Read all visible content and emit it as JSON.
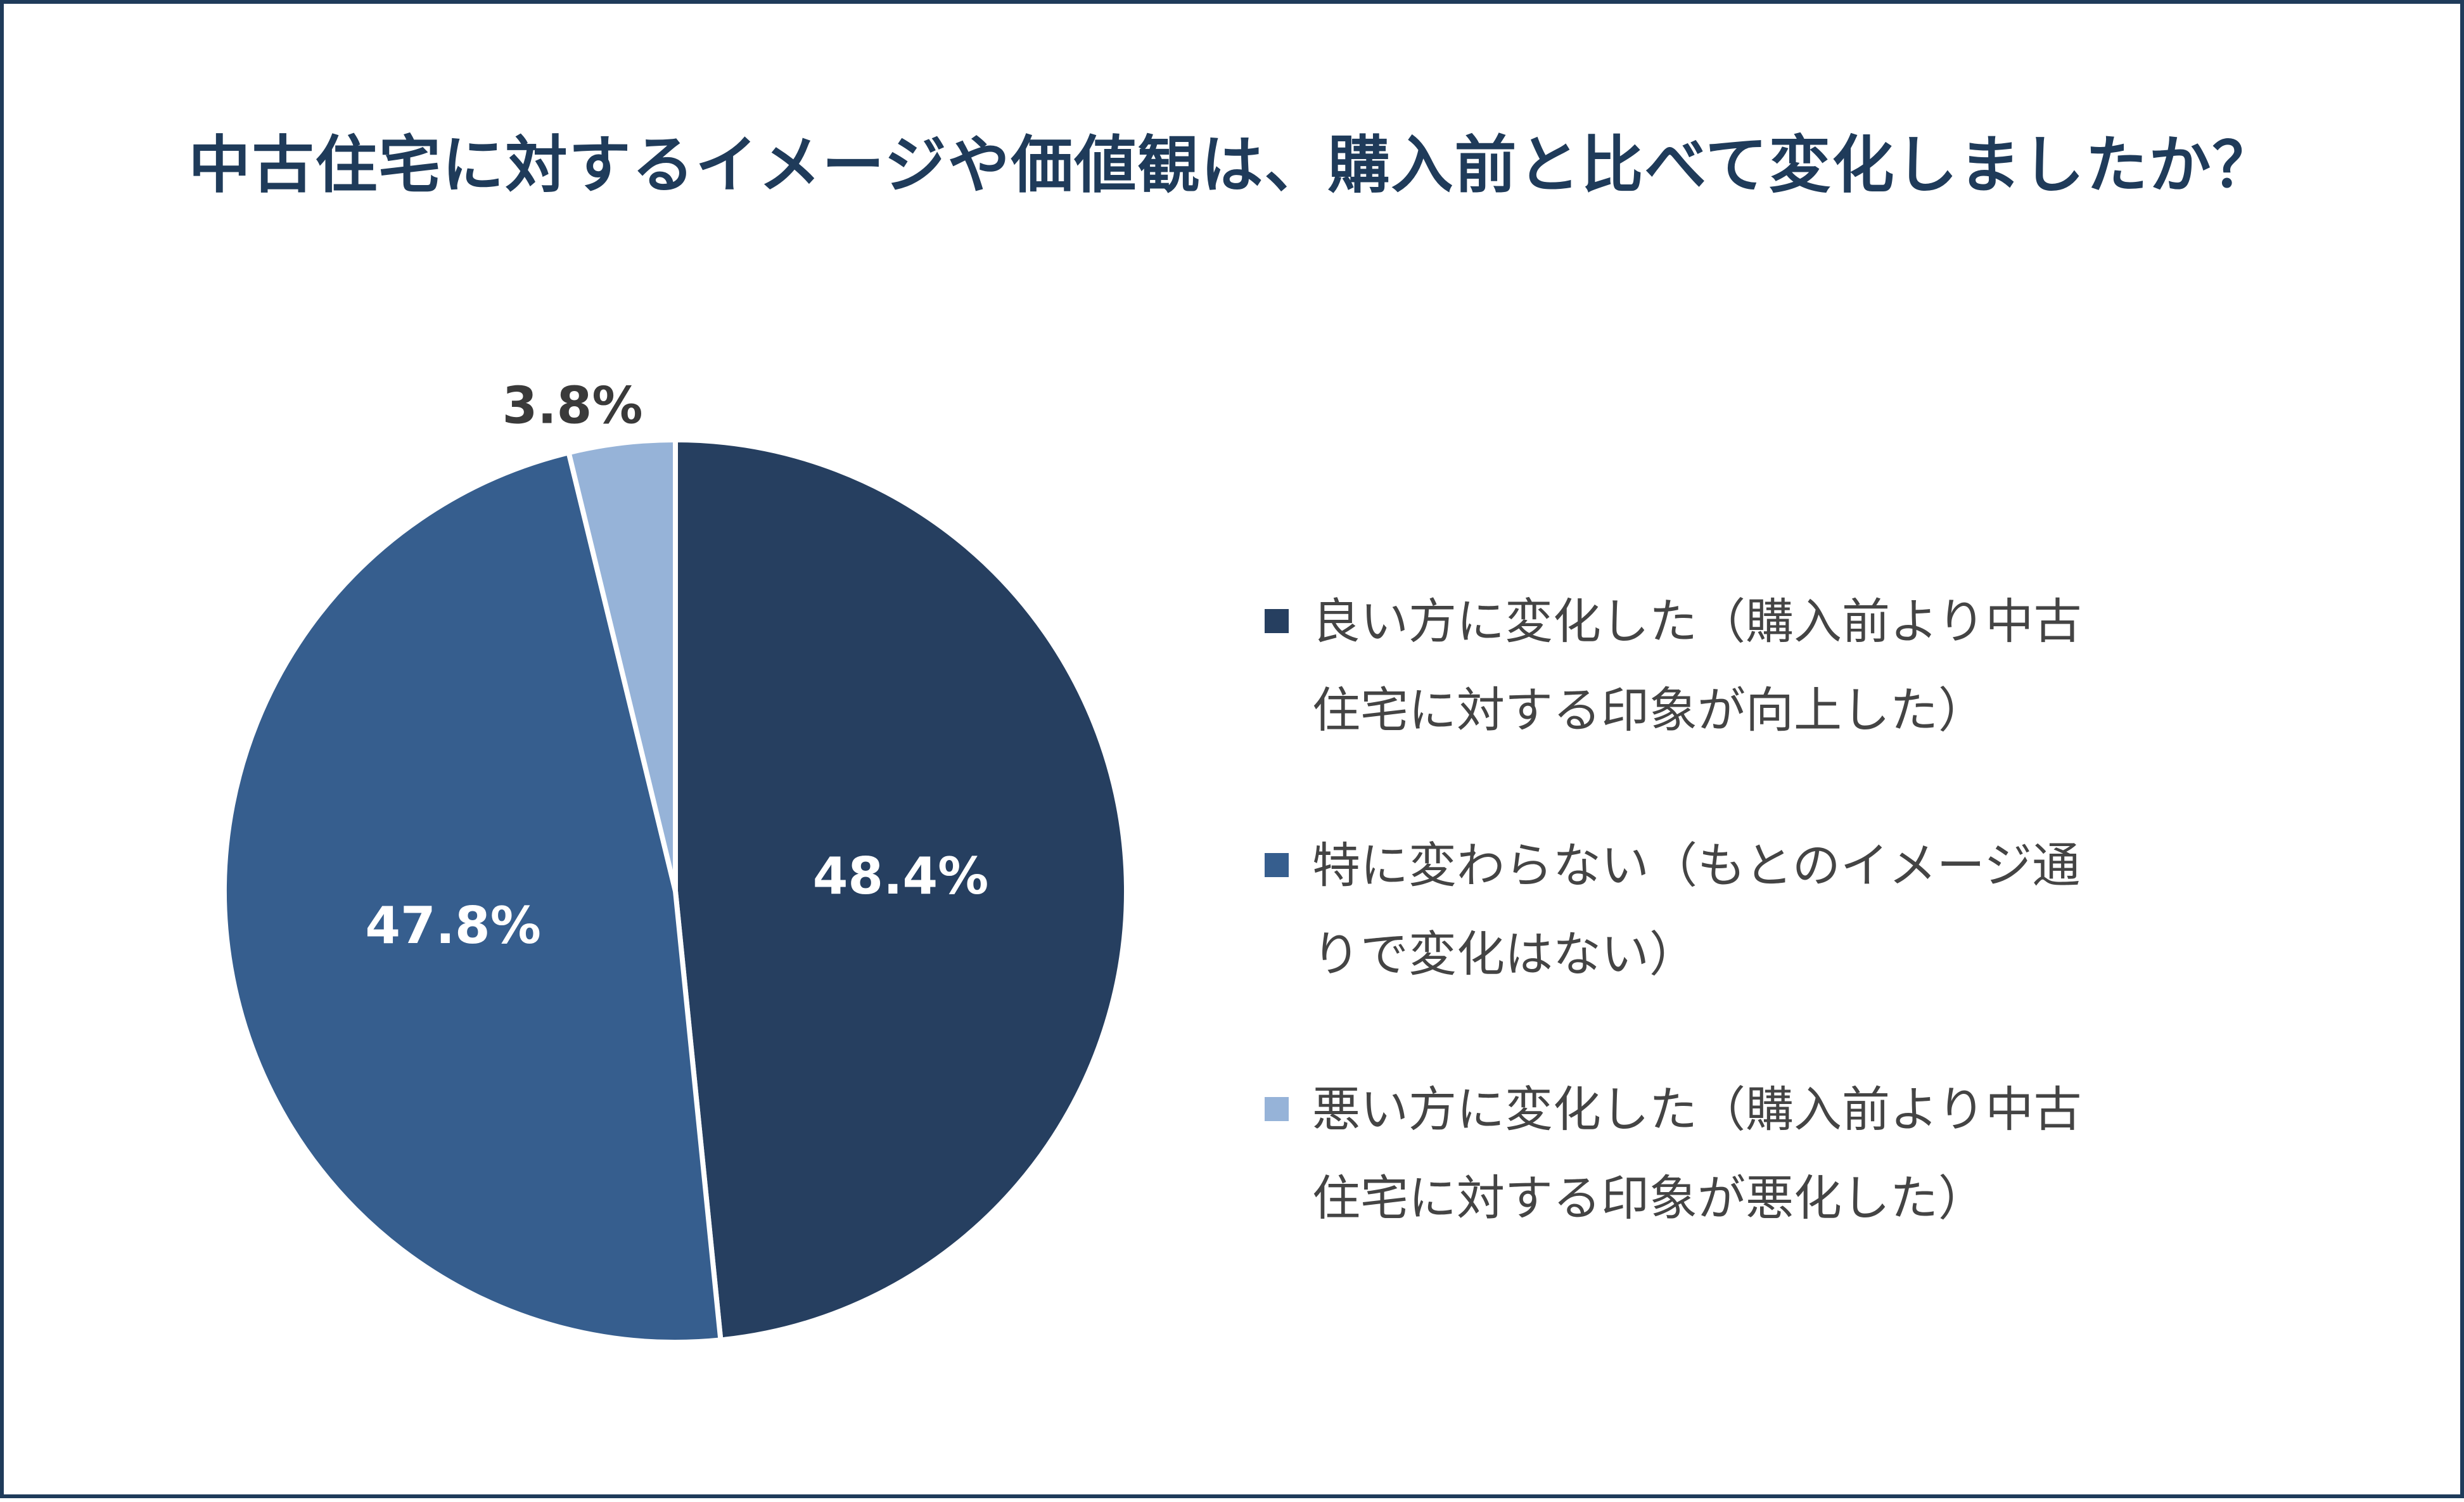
{
  "title": "中古住宅に対するイメージや価値観は、購入前と比べて変化しましたか？",
  "chart_data": {
    "type": "pie",
    "title": "中古住宅に対するイメージや価値観は、購入前と比べて変化しましたか？",
    "slices": [
      {
        "label": "良い方に変化した（購入前より中古住宅に対する印象が向上した）",
        "value": 48.4,
        "display": "48.4%",
        "color": "#263f60"
      },
      {
        "label": "特に変わらない（もとのイメージ通りで変化はない）",
        "value": 47.8,
        "display": "47.8%",
        "color": "#365e8e"
      },
      {
        "label": "悪い方に変化した（購入前より中古住宅に対する印象が悪化した）",
        "value": 3.8,
        "display": "3.8%",
        "color": "#96b3d8"
      }
    ],
    "legend_placement": "right"
  },
  "legend": [
    {
      "line1": "良い方に変化した（購入前より中古",
      "line2": "住宅に対する印象が向上した）"
    },
    {
      "line1": "特に変わらない（もとのイメージ通",
      "line2": "りで変化はない）"
    },
    {
      "line1": "悪い方に変化した（購入前より中古",
      "line2": "住宅に対する印象が悪化した）"
    }
  ]
}
